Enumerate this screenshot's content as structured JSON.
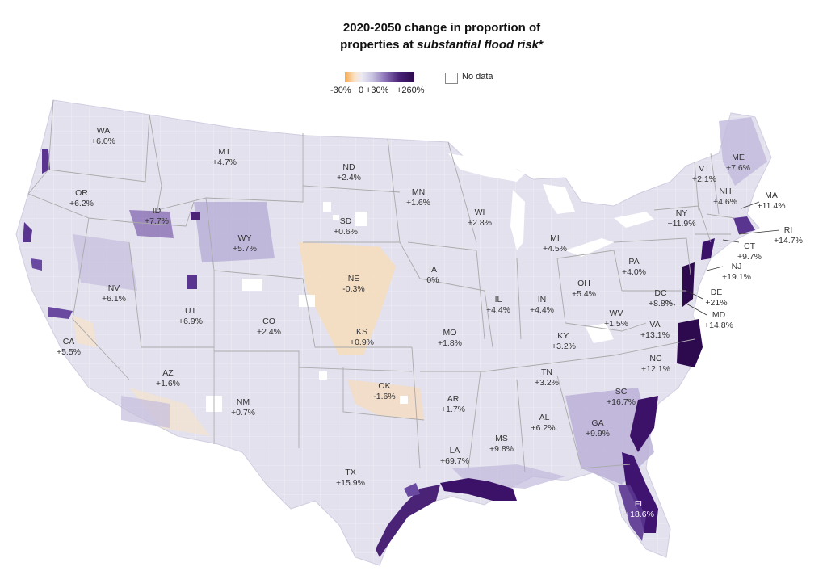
{
  "title": {
    "line1": "2020-2050 change in proportion of",
    "line2_prefix": "properties at ",
    "line2_italic": "substantial flood risk",
    "line2_suffix": "*"
  },
  "legend": {
    "tick_min": "-30%",
    "tick_zero": "0",
    "tick_mid": "+30%",
    "tick_max": "+260%",
    "nodata_label": "No data",
    "colors": [
      "#f5a84a",
      "#fbe3c8",
      "#eceaf3",
      "#c7c2e0",
      "#8c72b8",
      "#4a2377",
      "#2d0a4e"
    ]
  },
  "states": [
    {
      "abbr": "WA",
      "value": "+6.0%"
    },
    {
      "abbr": "OR",
      "value": "+6.2%"
    },
    {
      "abbr": "CA",
      "value": "+5.5%"
    },
    {
      "abbr": "NV",
      "value": "+6.1%"
    },
    {
      "abbr": "ID",
      "value": "+7.7%"
    },
    {
      "abbr": "MT",
      "value": "+4.7%"
    },
    {
      "abbr": "WY",
      "value": "+5.7%"
    },
    {
      "abbr": "UT",
      "value": "+6.9%"
    },
    {
      "abbr": "AZ",
      "value": "+1.6%"
    },
    {
      "abbr": "CO",
      "value": "+2.4%"
    },
    {
      "abbr": "NM",
      "value": "+0.7%"
    },
    {
      "abbr": "ND",
      "value": "+2.4%"
    },
    {
      "abbr": "SD",
      "value": "+0.6%"
    },
    {
      "abbr": "NE",
      "value": "-0.3%"
    },
    {
      "abbr": "KS",
      "value": "+0.9%"
    },
    {
      "abbr": "OK",
      "value": "-1.6%"
    },
    {
      "abbr": "TX",
      "value": "+15.9%"
    },
    {
      "abbr": "MN",
      "value": "+1.6%"
    },
    {
      "abbr": "IA",
      "value": "0%"
    },
    {
      "abbr": "MO",
      "value": "+1.8%"
    },
    {
      "abbr": "AR",
      "value": "+1.7%"
    },
    {
      "abbr": "LA",
      "value": "+69.7%"
    },
    {
      "abbr": "WI",
      "value": "+2.8%"
    },
    {
      "abbr": "IL",
      "value": "+4.4%"
    },
    {
      "abbr": "MI",
      "value": "+4.5%"
    },
    {
      "abbr": "IN",
      "value": "+4.4%"
    },
    {
      "abbr": "OH",
      "value": "+5.4%"
    },
    {
      "abbr": "KY.",
      "value": "+3.2%"
    },
    {
      "abbr": "TN",
      "value": "+3.2%"
    },
    {
      "abbr": "MS",
      "value": "+9.8%"
    },
    {
      "abbr": "AL",
      "value": "+6.2%."
    },
    {
      "abbr": "GA",
      "value": "+9.9%"
    },
    {
      "abbr": "FL",
      "value": "+18.6%"
    },
    {
      "abbr": "SC",
      "value": "+16.7%"
    },
    {
      "abbr": "NC",
      "value": "+12.1%"
    },
    {
      "abbr": "VA",
      "value": "+13.1%"
    },
    {
      "abbr": "WV",
      "value": "+1.5%"
    },
    {
      "abbr": "DC",
      "value": "+8.8%"
    },
    {
      "abbr": "MD",
      "value": "+14.8%"
    },
    {
      "abbr": "DE",
      "value": "+21%"
    },
    {
      "abbr": "PA",
      "value": "+4.0%"
    },
    {
      "abbr": "NJ",
      "value": "+19.1%"
    },
    {
      "abbr": "NY",
      "value": "+11.9%"
    },
    {
      "abbr": "CT",
      "value": "+9.7%"
    },
    {
      "abbr": "RI",
      "value": "+14.7%"
    },
    {
      "abbr": "MA",
      "value": "+11.4%"
    },
    {
      "abbr": "VT",
      "value": "+2.1%"
    },
    {
      "abbr": "NH",
      "value": "+4.6%"
    },
    {
      "abbr": "ME",
      "value": "+7.6%"
    }
  ]
}
